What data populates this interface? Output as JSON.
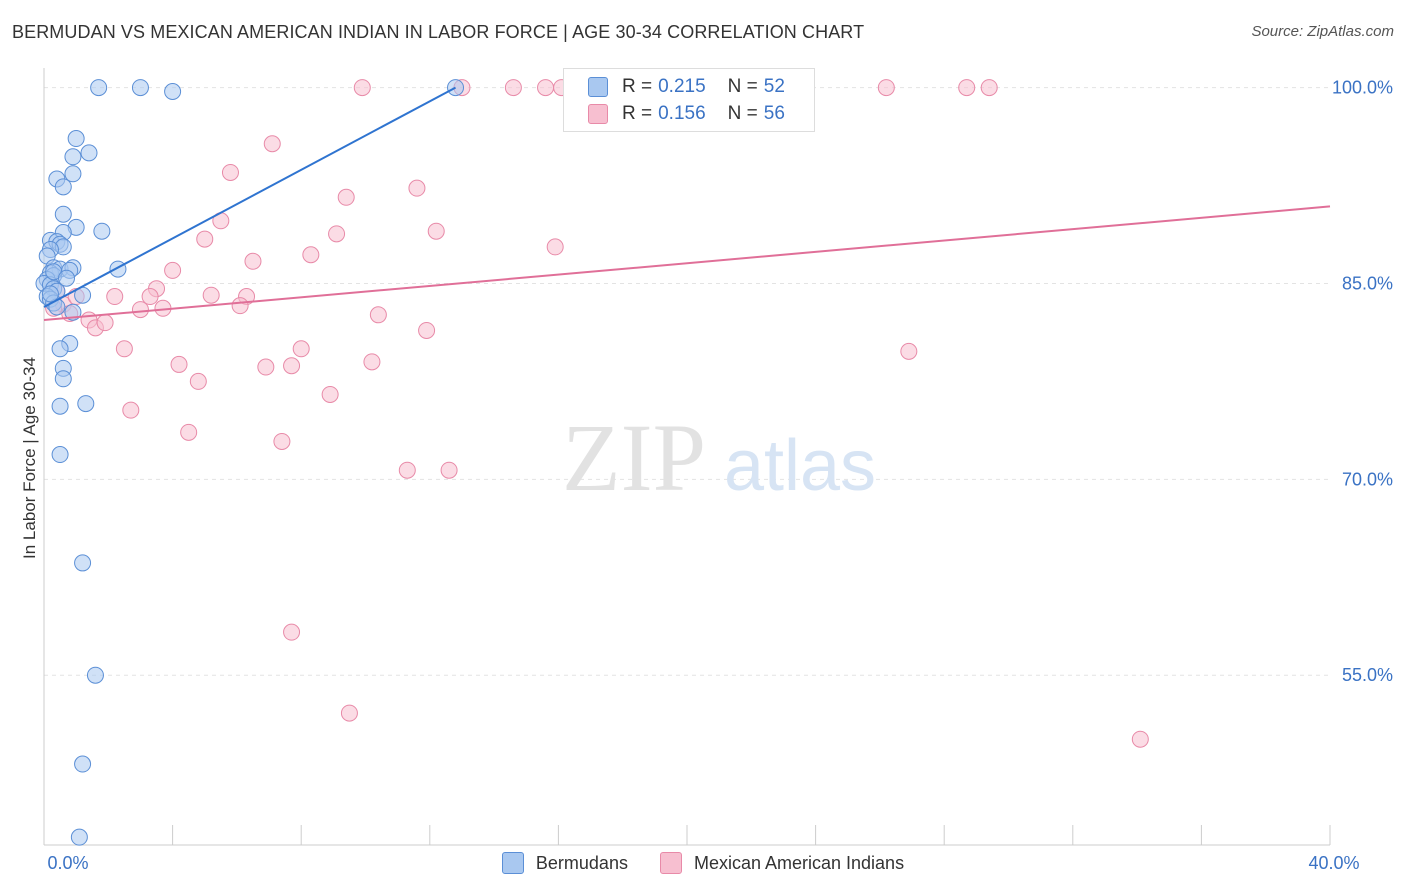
{
  "header": {
    "title": "BERMUDAN VS MEXICAN AMERICAN INDIAN IN LABOR FORCE | AGE 30-34 CORRELATION CHART",
    "source": "Source: ZipAtlas.com"
  },
  "watermark": {
    "zip": "ZIP",
    "atlas": "atlas"
  },
  "legend": {
    "rows": [
      {
        "r_label": "R =",
        "r_value": "0.215",
        "n_label": "N =",
        "n_value": "52"
      },
      {
        "r_label": "R =",
        "r_value": "0.156",
        "n_label": "N =",
        "n_value": "56"
      }
    ]
  },
  "bottom_legend": {
    "items": [
      "Bermudans",
      "Mexican American Indians"
    ]
  },
  "colors": {
    "blue_fill": "#a9c8f0",
    "blue_stroke": "#5b8fd6",
    "blue_line": "#2f74d0",
    "pink_fill": "#f7bfd0",
    "pink_stroke": "#e88aa8",
    "pink_line": "#e06f98",
    "tick_label": "#3a72c4",
    "grid": "#e3e3e3"
  },
  "chart_data": {
    "type": "scatter",
    "title": "BERMUDAN VS MEXICAN AMERICAN INDIAN IN LABOR FORCE | AGE 30-34 CORRELATION CHART",
    "xlabel": "",
    "ylabel": "In Labor Force | Age 30-34",
    "xlim": [
      0,
      40
    ],
    "ylim": [
      42,
      101.5
    ],
    "x_tick_labels": [
      {
        "value": 0,
        "label": "0.0%"
      },
      {
        "value": 40,
        "label": "40.0%"
      }
    ],
    "y_tick_labels": [
      {
        "value": 100,
        "label": "100.0%"
      },
      {
        "value": 85,
        "label": "85.0%"
      },
      {
        "value": 70,
        "label": "70.0%"
      },
      {
        "value": 55,
        "label": "55.0%"
      }
    ],
    "grid": true,
    "legend_position": "top-center",
    "series": [
      {
        "name": "Bermudans",
        "color": "#5b8fd6",
        "r": 0.215,
        "n": 52,
        "trend": {
          "x": [
            0.0,
            12.8
          ],
          "y": [
            83.2,
            100.0
          ]
        },
        "points": [
          [
            1.7,
            100.0
          ],
          [
            3.0,
            100.0
          ],
          [
            4.0,
            99.7
          ],
          [
            12.8,
            100.0
          ],
          [
            1.0,
            96.1
          ],
          [
            1.4,
            95.0
          ],
          [
            0.9,
            94.7
          ],
          [
            0.9,
            93.4
          ],
          [
            0.4,
            93.0
          ],
          [
            0.6,
            92.4
          ],
          [
            0.6,
            90.3
          ],
          [
            1.0,
            89.3
          ],
          [
            1.8,
            89.0
          ],
          [
            0.6,
            88.9
          ],
          [
            0.2,
            88.3
          ],
          [
            0.4,
            88.2
          ],
          [
            0.5,
            88.0
          ],
          [
            0.6,
            87.8
          ],
          [
            0.2,
            87.6
          ],
          [
            0.1,
            87.1
          ],
          [
            0.3,
            86.2
          ],
          [
            0.5,
            86.1
          ],
          [
            0.9,
            86.2
          ],
          [
            0.8,
            86.0
          ],
          [
            2.3,
            86.1
          ],
          [
            0.2,
            85.8
          ],
          [
            0.3,
            85.6
          ],
          [
            0.1,
            85.3
          ],
          [
            0.0,
            85.0
          ],
          [
            0.2,
            84.9
          ],
          [
            0.3,
            84.6
          ],
          [
            0.4,
            84.4
          ],
          [
            1.2,
            84.1
          ],
          [
            0.1,
            84.0
          ],
          [
            0.2,
            83.8
          ],
          [
            0.3,
            83.5
          ],
          [
            0.4,
            83.2
          ],
          [
            0.9,
            82.8
          ],
          [
            0.8,
            80.4
          ],
          [
            0.5,
            80.0
          ],
          [
            0.6,
            78.5
          ],
          [
            0.6,
            77.7
          ],
          [
            0.5,
            75.6
          ],
          [
            1.3,
            75.8
          ],
          [
            0.5,
            71.9
          ],
          [
            1.2,
            63.6
          ],
          [
            1.6,
            55.0
          ],
          [
            1.2,
            48.2
          ],
          [
            1.1,
            42.6
          ],
          [
            0.3,
            85.9
          ],
          [
            0.7,
            85.4
          ],
          [
            0.2,
            84.2
          ]
        ]
      },
      {
        "name": "Mexican American Indians",
        "color": "#e88aa8",
        "r": 0.156,
        "n": 56,
        "trend": {
          "x": [
            0.0,
            40.0
          ],
          "y": [
            82.2,
            90.9
          ]
        },
        "points": [
          [
            9.9,
            100.0
          ],
          [
            13.0,
            100.0
          ],
          [
            14.6,
            100.0
          ],
          [
            15.6,
            100.0
          ],
          [
            16.1,
            100.0
          ],
          [
            19.8,
            100.0
          ],
          [
            26.2,
            100.0
          ],
          [
            28.7,
            100.0
          ],
          [
            29.4,
            100.0
          ],
          [
            7.1,
            95.7
          ],
          [
            5.8,
            93.5
          ],
          [
            11.6,
            92.3
          ],
          [
            9.4,
            91.6
          ],
          [
            5.5,
            89.8
          ],
          [
            12.2,
            89.0
          ],
          [
            9.1,
            88.8
          ],
          [
            5.0,
            88.4
          ],
          [
            15.9,
            87.8
          ],
          [
            8.3,
            87.2
          ],
          [
            6.5,
            86.7
          ],
          [
            4.0,
            86.0
          ],
          [
            3.5,
            84.6
          ],
          [
            2.2,
            84.0
          ],
          [
            5.2,
            84.1
          ],
          [
            3.3,
            84.0
          ],
          [
            6.3,
            84.0
          ],
          [
            6.1,
            83.3
          ],
          [
            3.7,
            83.1
          ],
          [
            3.0,
            83.0
          ],
          [
            10.4,
            82.6
          ],
          [
            0.4,
            84.4
          ],
          [
            0.6,
            83.4
          ],
          [
            0.8,
            82.7
          ],
          [
            1.4,
            82.2
          ],
          [
            1.6,
            81.6
          ],
          [
            1.9,
            82.0
          ],
          [
            11.9,
            81.4
          ],
          [
            0.3,
            83.1
          ],
          [
            2.5,
            80.0
          ],
          [
            8.0,
            80.0
          ],
          [
            26.9,
            79.8
          ],
          [
            10.2,
            79.0
          ],
          [
            4.2,
            78.8
          ],
          [
            7.7,
            78.7
          ],
          [
            6.9,
            78.6
          ],
          [
            4.8,
            77.5
          ],
          [
            8.9,
            76.5
          ],
          [
            2.7,
            75.3
          ],
          [
            4.5,
            73.6
          ],
          [
            7.4,
            72.9
          ],
          [
            11.3,
            70.7
          ],
          [
            12.6,
            70.7
          ],
          [
            7.7,
            58.3
          ],
          [
            9.5,
            52.1
          ],
          [
            34.1,
            50.1
          ],
          [
            1.0,
            84.0
          ]
        ]
      }
    ]
  }
}
